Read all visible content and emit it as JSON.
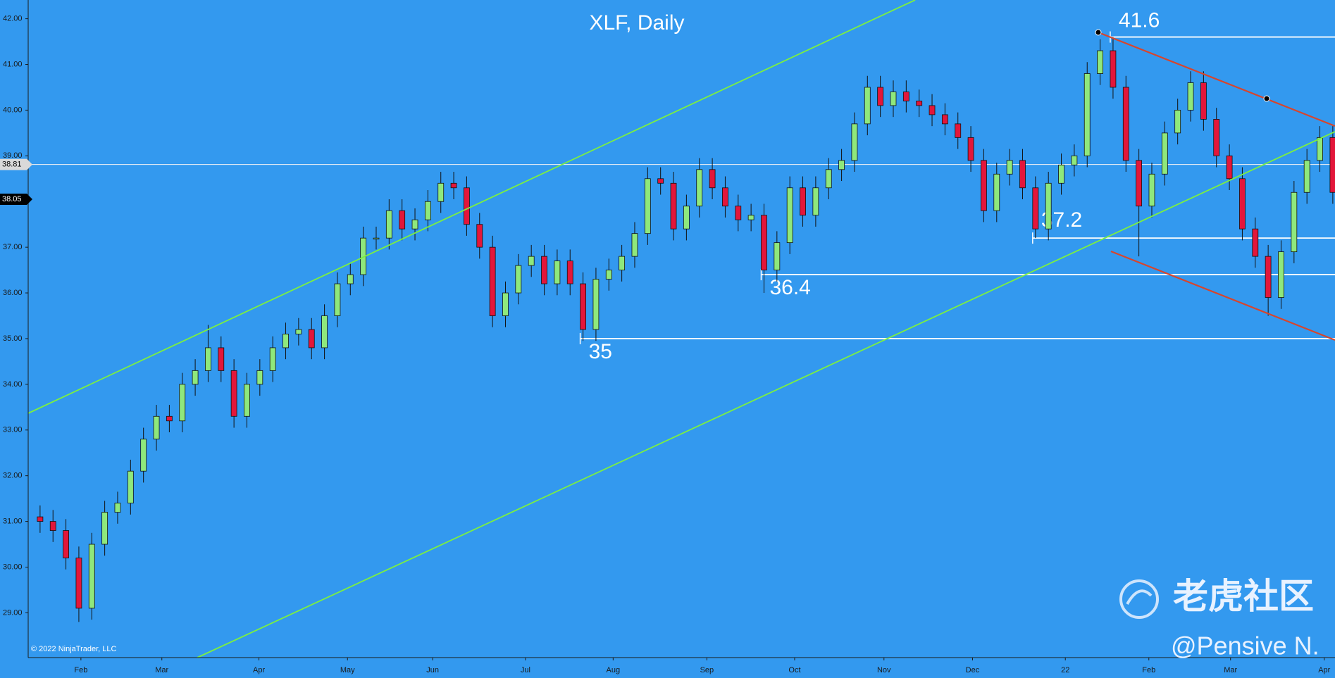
{
  "chart_data": {
    "type": "candlestick",
    "title": "XLF, Daily",
    "open": [
      31.1,
      31.0,
      30.8,
      30.2,
      29.1,
      30.5,
      31.2,
      31.4,
      32.1,
      32.8,
      33.3,
      33.2,
      34.0,
      34.3,
      34.8,
      34.3,
      33.3,
      34.0,
      34.3,
      34.8,
      35.1,
      35.2,
      34.8,
      35.5,
      36.2,
      36.4,
      37.2,
      37.2,
      37.8,
      37.4,
      37.6,
      38.0,
      38.4,
      38.3,
      37.5,
      37.0,
      35.5,
      36.0,
      36.6,
      36.8,
      36.2,
      36.7,
      36.2,
      35.2,
      36.3,
      36.5,
      36.8,
      37.3,
      38.5,
      38.4,
      37.4,
      37.9,
      38.7,
      38.3,
      37.9,
      37.6,
      37.7,
      36.5,
      37.1,
      38.3,
      37.7,
      38.3,
      38.7,
      38.9,
      39.7,
      40.5,
      40.1,
      40.4,
      40.2,
      40.1,
      39.9,
      39.7,
      39.4,
      38.9,
      37.8,
      38.6,
      38.9,
      38.3,
      37.4,
      38.4,
      38.8,
      39.0,
      40.8,
      41.3,
      40.5,
      38.9,
      37.9,
      38.6,
      39.5,
      40.0,
      40.6,
      39.8,
      39.0,
      38.5,
      37.4,
      36.8,
      35.9,
      36.9,
      38.2,
      38.9,
      39.4
    ],
    "high": [
      31.35,
      31.25,
      31.05,
      30.45,
      30.75,
      31.45,
      31.65,
      32.35,
      33.05,
      33.55,
      33.55,
      34.25,
      34.55,
      35.3,
      35.05,
      34.55,
      34.25,
      34.55,
      35.05,
      35.35,
      35.45,
      35.45,
      35.75,
      36.45,
      36.65,
      37.45,
      37.45,
      38.05,
      38.05,
      37.85,
      38.25,
      38.65,
      38.65,
      38.55,
      37.75,
      37.25,
      36.25,
      36.85,
      37.05,
      37.05,
      36.95,
      36.95,
      36.45,
      36.55,
      36.75,
      37.05,
      37.55,
      38.75,
      38.75,
      38.65,
      38.15,
      38.95,
      38.95,
      38.55,
      38.15,
      37.95,
      37.95,
      37.35,
      38.55,
      38.55,
      38.55,
      38.95,
      39.15,
      39.95,
      40.75,
      40.75,
      40.65,
      40.65,
      40.45,
      40.35,
      40.15,
      39.95,
      39.65,
      39.15,
      38.85,
      39.15,
      39.15,
      38.55,
      38.65,
      39.05,
      39.25,
      41.05,
      41.55,
      41.6,
      40.75,
      39.15,
      38.85,
      39.75,
      40.25,
      40.85,
      40.85,
      40.05,
      39.25,
      38.75,
      37.65,
      37.05,
      37.15,
      38.45,
      39.15,
      39.65,
      39.65
    ],
    "low": [
      30.75,
      30.55,
      29.95,
      28.8,
      28.85,
      30.25,
      30.95,
      31.15,
      31.85,
      32.55,
      32.95,
      32.95,
      33.75,
      34.05,
      34.05,
      33.05,
      33.05,
      33.75,
      34.05,
      34.55,
      34.85,
      34.55,
      34.55,
      35.25,
      35.95,
      36.15,
      36.95,
      36.95,
      37.15,
      37.15,
      37.35,
      37.75,
      38.05,
      37.25,
      36.75,
      35.25,
      35.25,
      35.75,
      36.35,
      35.95,
      35.95,
      35.95,
      34.95,
      34.95,
      36.05,
      36.25,
      36.55,
      37.05,
      38.15,
      37.15,
      37.15,
      37.65,
      38.05,
      37.65,
      37.35,
      37.35,
      36.0,
      36.25,
      36.85,
      37.45,
      37.45,
      38.05,
      38.45,
      38.65,
      39.45,
      39.85,
      39.85,
      39.95,
      39.85,
      39.65,
      39.45,
      39.15,
      38.65,
      37.55,
      37.55,
      38.35,
      38.05,
      37.2,
      37.15,
      38.15,
      38.55,
      38.75,
      40.55,
      40.25,
      38.65,
      36.8,
      37.65,
      38.35,
      39.25,
      39.75,
      39.55,
      38.75,
      38.25,
      37.15,
      36.55,
      35.5,
      35.65,
      36.65,
      37.95,
      38.65,
      37.95
    ],
    "close": [
      31.0,
      30.8,
      30.2,
      29.1,
      30.5,
      31.2,
      31.4,
      32.1,
      32.8,
      33.3,
      33.2,
      34.0,
      34.3,
      34.8,
      34.3,
      33.3,
      34.0,
      34.3,
      34.8,
      35.1,
      35.2,
      34.8,
      35.5,
      36.2,
      36.4,
      37.2,
      37.2,
      37.8,
      37.4,
      37.6,
      38.0,
      38.4,
      38.3,
      37.5,
      37.0,
      35.5,
      36.0,
      36.6,
      36.8,
      36.2,
      36.7,
      36.2,
      35.2,
      36.3,
      36.5,
      36.8,
      37.3,
      38.5,
      38.4,
      37.4,
      37.9,
      38.7,
      38.3,
      37.9,
      37.6,
      37.7,
      36.5,
      37.1,
      38.3,
      37.7,
      38.3,
      38.7,
      38.9,
      39.7,
      40.5,
      40.1,
      40.4,
      40.2,
      40.1,
      39.9,
      39.7,
      39.4,
      38.9,
      37.8,
      38.6,
      38.9,
      38.3,
      37.4,
      38.4,
      38.8,
      39.0,
      40.8,
      41.3,
      40.5,
      38.9,
      37.9,
      38.6,
      39.5,
      40.0,
      40.6,
      39.8,
      39.0,
      38.5,
      37.4,
      36.8,
      35.9,
      36.9,
      38.2,
      38.9,
      39.4,
      38.2
    ],
    "up_color": "#8fe87c",
    "down_color": "#e3163a",
    "xlim": [
      -0.92,
      100.17
    ],
    "xticks": [
      {
        "value": 3.16,
        "label": "Feb"
      },
      {
        "value": 9.42,
        "label": "Mar"
      },
      {
        "value": 16.93,
        "label": "Apr"
      },
      {
        "value": 23.78,
        "label": "May"
      },
      {
        "value": 30.37,
        "label": "Jun"
      },
      {
        "value": 37.55,
        "label": "Jul"
      },
      {
        "value": 44.33,
        "label": "Aug"
      },
      {
        "value": 51.58,
        "label": "Sep"
      },
      {
        "value": 58.37,
        "label": "Oct"
      },
      {
        "value": 65.28,
        "label": "Nov"
      },
      {
        "value": 72.13,
        "label": "Dec"
      },
      {
        "value": 79.31,
        "label": "22"
      },
      {
        "value": 85.77,
        "label": "Feb"
      },
      {
        "value": 92.09,
        "label": "Mar"
      },
      {
        "value": 99.34,
        "label": "Apr"
      }
    ],
    "ylim": [
      28.02,
      42.41
    ],
    "yticks": [
      {
        "value": 29,
        "label": "29.00"
      },
      {
        "value": 30,
        "label": "30.00"
      },
      {
        "value": 31,
        "label": "31.00"
      },
      {
        "value": 32,
        "label": "32.00"
      },
      {
        "value": 33,
        "label": "33.00"
      },
      {
        "value": 34,
        "label": "34.00"
      },
      {
        "value": 35,
        "label": "35.00"
      },
      {
        "value": 36,
        "label": "36.00"
      },
      {
        "value": 37,
        "label": "37.00"
      },
      {
        "value": 38,
        "label": "38.00"
      },
      {
        "value": 39,
        "label": "39.00"
      },
      {
        "value": 40,
        "label": "40.00"
      },
      {
        "value": 41,
        "label": "41.00"
      },
      {
        "value": 42,
        "label": "42.00"
      }
    ],
    "levels": [
      35,
      36.4,
      37.2,
      41.6
    ],
    "price_markers": [
      {
        "value": 38.81,
        "label": "38.81"
      },
      {
        "value": 38.05,
        "label": "38.05"
      }
    ],
    "copyright": "© 2022 NinjaTrader, LLC",
    "watermark": "老虎社区",
    "author": "@Pensive N."
  }
}
